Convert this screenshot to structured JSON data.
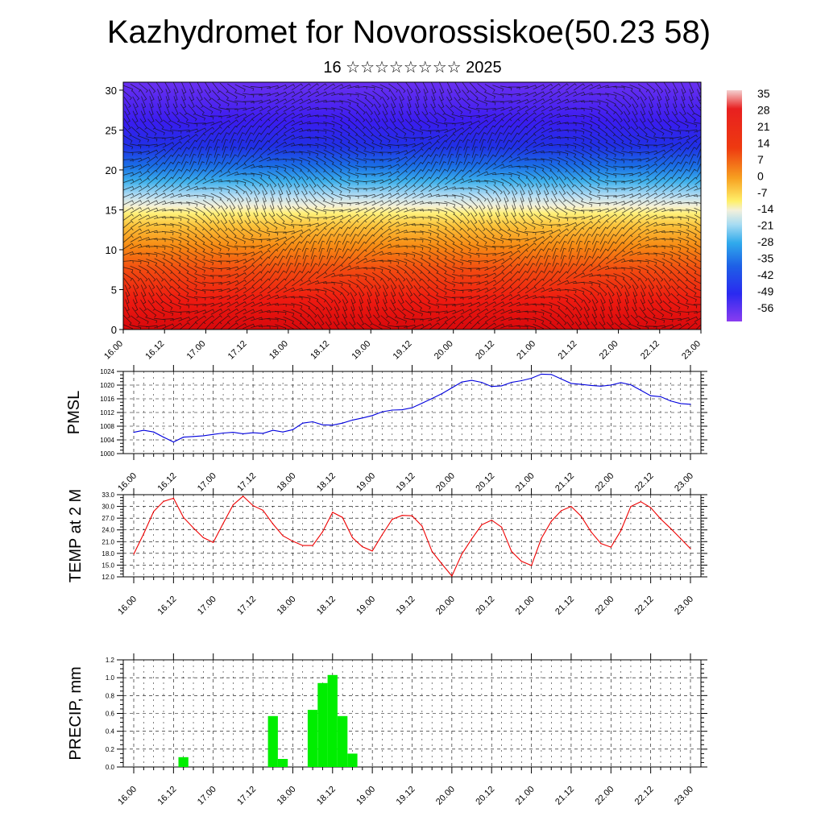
{
  "title": "Kazhydromet for Novorossiskoe(50.23 58)",
  "subtitle": "16 ☆☆☆☆☆☆☆☆ 2025",
  "time_labels": [
    "16.00",
    "16.12",
    "17.00",
    "17.12",
    "18.00",
    "18.12",
    "19.00",
    "19.12",
    "20.00",
    "20.12",
    "21.00",
    "21.12",
    "22.00",
    "22.12",
    "23.00"
  ],
  "colors": {
    "pmsl_line": "#0000dd",
    "temp_line": "#ee0000",
    "precip_bar": "#00ee00",
    "colorbar_top": "#f0c8c8",
    "colorbar_bottom": "#8a3cf0"
  },
  "chart_data": [
    {
      "type": "heatmap",
      "title": "",
      "x_labels": [
        "16.00",
        "16.12",
        "17.00",
        "17.12",
        "18.00",
        "18.12",
        "19.00",
        "19.12",
        "20.00",
        "20.12",
        "21.00",
        "21.12",
        "22.00",
        "22.12",
        "23.00"
      ],
      "y_ticks": [
        0,
        5,
        10,
        15,
        20,
        25,
        30
      ],
      "ylim": [
        0,
        31
      ],
      "colorbar_labels": [
        "35",
        "28",
        "21",
        "14",
        "7",
        "0",
        "-7",
        "-14",
        "-21",
        "-28",
        "-35",
        "-42",
        "-49",
        "-56"
      ],
      "overlay": "wind barbs"
    },
    {
      "type": "line",
      "ylabel": "PMSL",
      "ylim": [
        1000,
        1024
      ],
      "y_ticks": [
        "1000",
        "1004",
        "1008",
        "1012",
        "1016",
        "1020",
        "1024"
      ],
      "x_labels": [
        "16.00",
        "16.12",
        "17.00",
        "17.12",
        "18.00",
        "18.12",
        "19.00",
        "19.12",
        "20.00",
        "20.12",
        "21.00",
        "21.12",
        "22.00",
        "22.12",
        "23.00"
      ],
      "values": [
        1006.2,
        1006.8,
        1006.3,
        1004.8,
        1003.4,
        1004.8,
        1005.0,
        1005.2,
        1005.6,
        1006.0,
        1006.2,
        1005.8,
        1006.1,
        1005.9,
        1006.8,
        1006.3,
        1007.0,
        1008.9,
        1009.3,
        1008.4,
        1008.3,
        1008.9,
        1009.8,
        1010.4,
        1011.1,
        1012.2,
        1012.7,
        1012.8,
        1013.4,
        1014.7,
        1016.1,
        1017.5,
        1019.2,
        1020.9,
        1021.4,
        1020.8,
        1019.6,
        1019.8,
        1020.8,
        1021.3,
        1022.0,
        1023.2,
        1023.1,
        1021.8,
        1020.5,
        1020.2,
        1019.9,
        1019.7,
        1020.0,
        1020.7,
        1020.1,
        1018.5,
        1016.9,
        1016.6,
        1015.4,
        1014.6,
        1014.4
      ]
    },
    {
      "type": "line",
      "ylabel": "TEMP at 2 M",
      "ylim": [
        12.0,
        33.0
      ],
      "y_ticks": [
        "12.0",
        "15.0",
        "18.0",
        "21.0",
        "24.0",
        "27.0",
        "30.0",
        "33.0"
      ],
      "x_labels": [
        "16.00",
        "16.12",
        "17.00",
        "17.12",
        "18.00",
        "18.12",
        "19.00",
        "19.12",
        "20.00",
        "20.12",
        "21.00",
        "21.12",
        "22.00",
        "22.12",
        "23.00"
      ],
      "values": [
        17.8,
        23.0,
        28.7,
        31.3,
        32.1,
        27.2,
        24.5,
        22.0,
        20.8,
        25.7,
        30.4,
        32.6,
        30.2,
        29.0,
        25.5,
        22.5,
        21.1,
        20.0,
        20.0,
        23.5,
        28.5,
        27.2,
        22.0,
        19.7,
        18.6,
        22.8,
        26.7,
        27.7,
        27.6,
        25.0,
        18.5,
        15.3,
        12.2,
        17.8,
        21.7,
        25.3,
        26.5,
        24.7,
        18.5,
        16.0,
        14.9,
        21.8,
        26.2,
        28.9,
        30.0,
        27.5,
        23.5,
        20.5,
        19.6,
        23.8,
        30.0,
        31.2,
        29.7,
        26.8,
        24.4,
        21.8,
        19.2
      ]
    },
    {
      "type": "bar",
      "ylabel": "PRECIP, mm",
      "ylim": [
        0,
        1.2
      ],
      "y_ticks": [
        "0.0",
        "0.2",
        "0.4",
        "0.6",
        "0.8",
        "1.0",
        "1.2"
      ],
      "x_labels": [
        "16.00",
        "16.12",
        "17.00",
        "17.12",
        "18.00",
        "18.12",
        "19.00",
        "19.12",
        "20.00",
        "20.12",
        "21.00",
        "21.12",
        "22.00",
        "22.12",
        "23.00"
      ],
      "values": [
        0,
        0,
        0,
        0,
        0,
        0.11,
        0,
        0,
        0,
        0,
        0,
        0,
        0,
        0,
        0.57,
        0.09,
        0,
        0,
        0.64,
        0.94,
        1.03,
        0.57,
        0.15,
        0,
        0,
        0,
        0,
        0,
        0,
        0,
        0,
        0,
        0,
        0,
        0,
        0,
        0,
        0,
        0,
        0,
        0,
        0,
        0,
        0,
        0,
        0,
        0,
        0,
        0,
        0,
        0,
        0,
        0,
        0,
        0,
        0,
        0
      ]
    }
  ]
}
